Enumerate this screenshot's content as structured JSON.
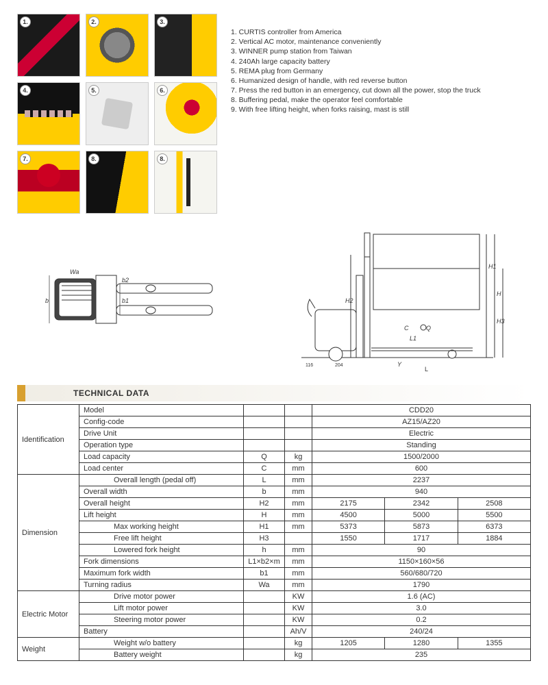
{
  "features": [
    "CURTIS controller from America",
    "Vertical AC motor, maintenance conveniently",
    "WINNER pump station from Taiwan",
    "240Ah large capacity battery",
    "REMA plug from Germany",
    "Humanized design of handle, with red reverse button",
    "Press the red button in an emergency, cut down all the power, stop the truck",
    "Buffering pedal, make the operator feel comfortable",
    "With free lifting height, when forks raising, mast is still"
  ],
  "photo_numbers": [
    "1.",
    "2.",
    "3.",
    "4.",
    "5.",
    "6.",
    "7.",
    "8.",
    "8."
  ],
  "diagram_labels": {
    "top": [
      "Wa",
      "b",
      "b1",
      "b2"
    ],
    "side": [
      "H2",
      "H1",
      "H",
      "H3",
      "C",
      "Q",
      "L1",
      "Y",
      "L",
      "204",
      "116"
    ]
  },
  "section_title": "TECHNICAL DATA",
  "table": {
    "groups": [
      {
        "name": "Identification",
        "rows": [
          {
            "param": "Model",
            "sym": "",
            "unit": "",
            "vals": [
              "CDD20"
            ],
            "span": 3
          },
          {
            "param": "Config-code",
            "sym": "",
            "unit": "",
            "vals": [
              "AZ15/AZ20"
            ],
            "span": 3
          },
          {
            "param": "Drive Unit",
            "sym": "",
            "unit": "",
            "vals": [
              "Electric"
            ],
            "span": 3
          },
          {
            "param": "Operation type",
            "sym": "",
            "unit": "",
            "vals": [
              "Standing"
            ],
            "span": 3
          },
          {
            "param": "Load capacity",
            "sym": "Q",
            "unit": "kg",
            "vals": [
              "1500/2000"
            ],
            "span": 3
          },
          {
            "param": "Load center",
            "sym": "C",
            "unit": "mm",
            "vals": [
              "600"
            ],
            "span": 3
          }
        ]
      },
      {
        "name": "Dimension",
        "rows": [
          {
            "param": "Overall length (pedal off)",
            "indent": true,
            "sym": "L",
            "unit": "mm",
            "vals": [
              "2237"
            ],
            "span": 3
          },
          {
            "param": "Overall width",
            "sym": "b",
            "unit": "mm",
            "vals": [
              "940"
            ],
            "span": 3
          },
          {
            "param": "Overall height",
            "sym": "H2",
            "unit": "mm",
            "vals": [
              "2175",
              "2342",
              "2508"
            ]
          },
          {
            "param": "Lift height",
            "sym": "H",
            "unit": "mm",
            "vals": [
              "4500",
              "5000",
              "5500"
            ]
          },
          {
            "param": "Max working height",
            "indent": true,
            "sym": "H1",
            "unit": "mm",
            "vals": [
              "5373",
              "5873",
              "6373"
            ]
          },
          {
            "param": "Free lift height",
            "indent": true,
            "sym": "H3",
            "unit": "",
            "vals": [
              "1550",
              "1717",
              "1884"
            ]
          },
          {
            "param": "Lowered fork height",
            "indent": true,
            "sym": "h",
            "unit": "mm",
            "vals": [
              "90"
            ],
            "span": 3
          },
          {
            "param": "Fork dimensions",
            "sym": "L1×b2×m",
            "unit": "mm",
            "vals": [
              "1150×160×56"
            ],
            "span": 3
          },
          {
            "param": "Maximum fork width",
            "sym": "b1",
            "unit": "mm",
            "vals": [
              "560/680/720"
            ],
            "span": 3
          },
          {
            "param": "Turning radius",
            "sym": "Wa",
            "unit": "mm",
            "vals": [
              "1790"
            ],
            "span": 3
          }
        ]
      },
      {
        "name": "Electric Motor",
        "rows": [
          {
            "param": "Drive motor power",
            "indent": true,
            "sym": "",
            "unit": "KW",
            "vals": [
              "1.6 (AC)"
            ],
            "span": 3
          },
          {
            "param": "Lift motor power",
            "indent": true,
            "sym": "",
            "unit": "KW",
            "vals": [
              "3.0"
            ],
            "span": 3
          },
          {
            "param": "Steering motor power",
            "indent": true,
            "sym": "",
            "unit": "KW",
            "vals": [
              "0.2"
            ],
            "span": 3
          },
          {
            "param": "Battery",
            "sym": "",
            "unit": "Ah/V",
            "vals": [
              "240/24"
            ],
            "span": 3
          }
        ]
      },
      {
        "name": "Weight",
        "rows": [
          {
            "param": "Weight w/o battery",
            "indent": true,
            "sym": "",
            "unit": "kg",
            "vals": [
              "1205",
              "1280",
              "1355"
            ]
          },
          {
            "param": "Battery weight",
            "indent": true,
            "sym": "",
            "unit": "kg",
            "vals": [
              "235"
            ],
            "span": 3
          }
        ]
      }
    ]
  },
  "colors": {
    "accent": "#d8a030",
    "border": "#333333",
    "yellow": "#ffcc00",
    "red": "#cc0022"
  }
}
